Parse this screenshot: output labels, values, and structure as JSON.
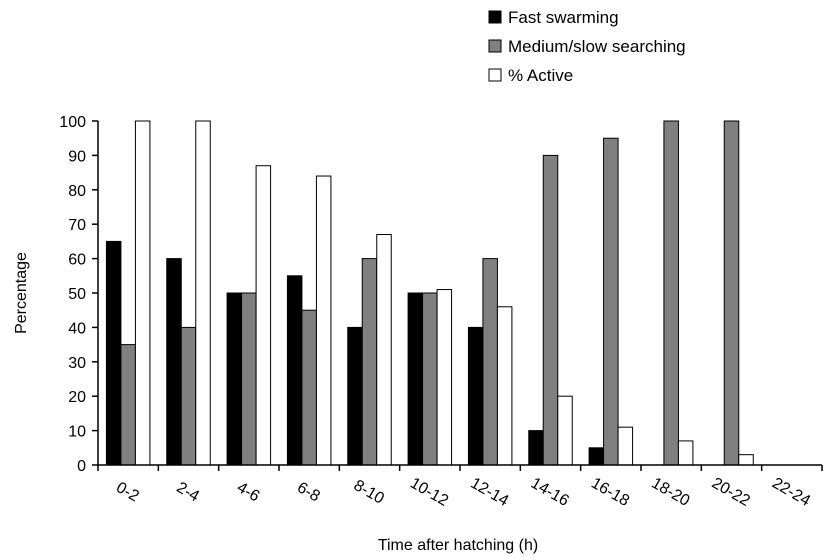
{
  "chart_data": {
    "type": "bar",
    "title": "",
    "xlabel": "Time after hatching (h)",
    "ylabel": "Percentage",
    "ylim": [
      0,
      100
    ],
    "yticks": [
      0,
      10,
      20,
      30,
      40,
      50,
      60,
      70,
      80,
      90,
      100
    ],
    "grid": false,
    "legend_position": "top-right",
    "categories": [
      "0-2",
      "2-4",
      "4-6",
      "6-8",
      "8-10",
      "10-12",
      "12-14",
      "14-16",
      "16-18",
      "18-20",
      "20-22",
      "22-24"
    ],
    "series": [
      {
        "name": "Fast swarming",
        "color": "#000000",
        "values": [
          65,
          60,
          50,
          55,
          40,
          50,
          40,
          10,
          5,
          0,
          0,
          0
        ]
      },
      {
        "name": "Medium/slow searching",
        "color": "#808080",
        "values": [
          35,
          40,
          50,
          45,
          60,
          50,
          60,
          90,
          95,
          100,
          100,
          0
        ]
      },
      {
        "name": "% Active",
        "color": "#ffffff",
        "values": [
          100,
          100,
          87,
          84,
          67,
          51,
          46,
          20,
          11,
          7,
          3,
          0
        ]
      }
    ]
  }
}
